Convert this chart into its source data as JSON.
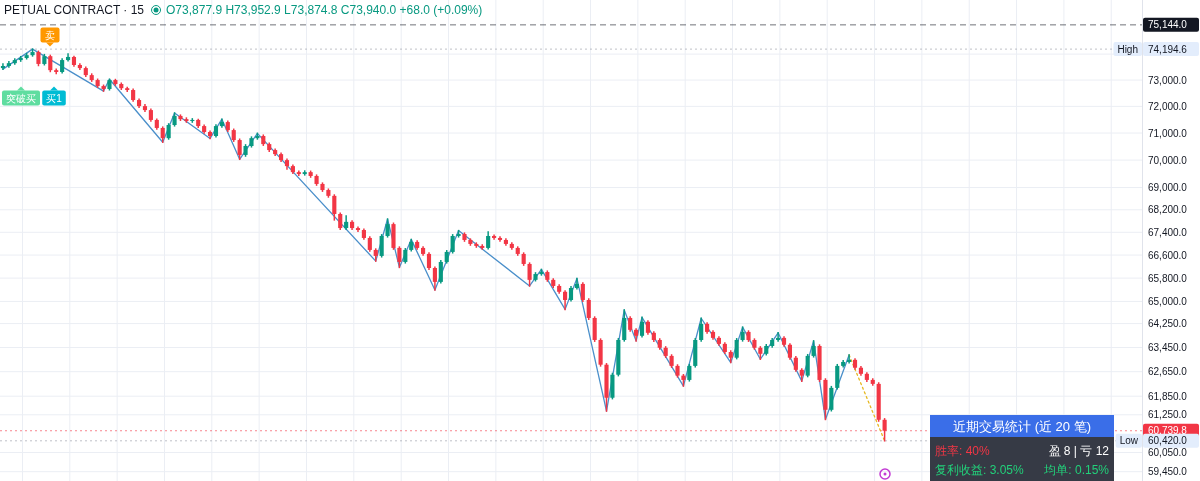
{
  "chart_data": {
    "type": "candlestick",
    "title": "PETUAL CONTRACT · 15",
    "subtitle": "O73,877.9 H73,952.9 L73,874.8 C73,940.0 +68.0 (+0.09%)",
    "categories": [
      null,
      null,
      null,
      null,
      null,
      null,
      null,
      null,
      null,
      null,
      null,
      null,
      null,
      null,
      null,
      null,
      null,
      null,
      null,
      null,
      null,
      null,
      null,
      null,
      null,
      null,
      null,
      null,
      null,
      null,
      null,
      null,
      null,
      null,
      null,
      null,
      null,
      null,
      null,
      null,
      null,
      null,
      null,
      null,
      null,
      null,
      null,
      null,
      null,
      null,
      null,
      null,
      null,
      null,
      null,
      null,
      null,
      null,
      null,
      null,
      null,
      null,
      null,
      null,
      null,
      null,
      null,
      null,
      null,
      null,
      null,
      null,
      null,
      null,
      null,
      null,
      null,
      null,
      null,
      null,
      null,
      null,
      null,
      null,
      null,
      null,
      null,
      null,
      null,
      null,
      null,
      null,
      null,
      null,
      null,
      null,
      null,
      null,
      null,
      null,
      null,
      null,
      null,
      null,
      null,
      null,
      null,
      null,
      null,
      null,
      null,
      null,
      null,
      null,
      null,
      null,
      null,
      null,
      null,
      null,
      null,
      null,
      null,
      null,
      null,
      null,
      null,
      null,
      null,
      null,
      null,
      null,
      null,
      null,
      null,
      null,
      null,
      null,
      null,
      null,
      null,
      null,
      null,
      null,
      null,
      null,
      null,
      null,
      null,
      null,
      null,
      null,
      null,
      null,
      null,
      null,
      null,
      null,
      null,
      null,
      null,
      null,
      null,
      null,
      null,
      null,
      null,
      null,
      null,
      null,
      null,
      null,
      null,
      null,
      null,
      null,
      null,
      null,
      null,
      null,
      null,
      null,
      null,
      null,
      null,
      null,
      null,
      null,
      null,
      null,
      null,
      null,
      null
    ],
    "ohlc": [
      [
        73460,
        73615,
        73420,
        73540
      ],
      [
        73540,
        73700,
        73500,
        73650
      ],
      [
        73650,
        73810,
        73620,
        73770
      ],
      [
        73770,
        73900,
        73730,
        73850
      ],
      [
        73850,
        74020,
        73820,
        73960
      ],
      [
        73960,
        74194.6,
        73930,
        74080
      ],
      [
        74080,
        74110,
        73560,
        73620
      ],
      [
        73620,
        73980,
        73590,
        73920
      ],
      [
        73920,
        73950,
        73330,
        73380
      ],
      [
        73380,
        73420,
        73250,
        73310
      ],
      [
        73310,
        73810,
        73280,
        73770
      ],
      [
        73770,
        74000,
        73740,
        73890
      ],
      [
        73890,
        73910,
        73540,
        73580
      ],
      [
        73580,
        73620,
        73420,
        73460
      ],
      [
        73460,
        73490,
        73150,
        73190
      ],
      [
        73190,
        73230,
        72960,
        73000
      ],
      [
        73000,
        73030,
        72730,
        72770
      ],
      [
        72770,
        72800,
        72580,
        72660
      ],
      [
        72660,
        73030,
        72630,
        73000
      ],
      [
        73000,
        73020,
        72810,
        72850
      ],
      [
        72850,
        72880,
        72650,
        72690
      ],
      [
        72690,
        72720,
        72570,
        72620
      ],
      [
        72620,
        72650,
        72200,
        72240
      ],
      [
        72240,
        72270,
        71970,
        72010
      ],
      [
        72010,
        72060,
        71820,
        71860
      ],
      [
        71860,
        71890,
        71450,
        71490
      ],
      [
        71490,
        71520,
        71150,
        71190
      ],
      [
        71190,
        71220,
        70660,
        70810
      ],
      [
        70810,
        71340,
        70780,
        71300
      ],
      [
        71300,
        71750,
        71270,
        71640
      ],
      [
        71640,
        71670,
        71480,
        71520
      ],
      [
        71520,
        71560,
        71410,
        71450
      ],
      [
        71450,
        71530,
        71410,
        71490
      ],
      [
        71490,
        71510,
        71220,
        71260
      ],
      [
        71260,
        71290,
        71000,
        71040
      ],
      [
        71040,
        71070,
        70800,
        70890
      ],
      [
        70890,
        71300,
        70860,
        71260
      ],
      [
        71260,
        71520,
        71230,
        71410
      ],
      [
        71410,
        71440,
        71070,
        71110
      ],
      [
        71110,
        71140,
        70700,
        70740
      ],
      [
        70740,
        70770,
        70030,
        70190
      ],
      [
        70190,
        70560,
        70150,
        70520
      ],
      [
        70520,
        70850,
        70490,
        70810
      ],
      [
        70810,
        70990,
        70780,
        70890
      ],
      [
        70890,
        70920,
        70550,
        70590
      ],
      [
        70590,
        70620,
        70330,
        70370
      ],
      [
        70370,
        70400,
        70180,
        70220
      ],
      [
        70220,
        70250,
        69960,
        70000
      ],
      [
        70000,
        70030,
        69670,
        69780
      ],
      [
        69780,
        69810,
        69520,
        69560
      ],
      [
        69560,
        69590,
        69450,
        69490
      ],
      [
        69490,
        69600,
        69460,
        69560
      ],
      [
        69560,
        69590,
        69380,
        69420
      ],
      [
        69420,
        69450,
        69090,
        69130
      ],
      [
        69130,
        69160,
        68870,
        68910
      ],
      [
        68910,
        68940,
        68660,
        68700
      ],
      [
        68700,
        68730,
        67840,
        68050
      ],
      [
        68050,
        68080,
        67510,
        67550
      ],
      [
        67550,
        67980,
        67510,
        67770
      ],
      [
        67770,
        67800,
        67510,
        67550
      ],
      [
        67550,
        67580,
        67440,
        67480
      ],
      [
        67480,
        67510,
        67160,
        67200
      ],
      [
        67200,
        67230,
        66740,
        66780
      ],
      [
        66780,
        66810,
        66390,
        66570
      ],
      [
        66570,
        67310,
        66540,
        67270
      ],
      [
        67270,
        67870,
        67240,
        67690
      ],
      [
        67690,
        67720,
        66810,
        66850
      ],
      [
        66850,
        66880,
        66170,
        66360
      ],
      [
        66360,
        66820,
        66330,
        66780
      ],
      [
        66780,
        67150,
        66750,
        67060
      ],
      [
        67060,
        67090,
        66810,
        66850
      ],
      [
        66850,
        66880,
        66600,
        66640
      ],
      [
        66640,
        66670,
        66110,
        66150
      ],
      [
        66150,
        66180,
        65390,
        65670
      ],
      [
        65670,
        66400,
        65640,
        66360
      ],
      [
        66360,
        66750,
        66330,
        66710
      ],
      [
        66710,
        67310,
        66680,
        67270
      ],
      [
        67270,
        67460,
        67240,
        67340
      ],
      [
        67340,
        67370,
        67090,
        67130
      ],
      [
        67130,
        67160,
        66950,
        66990
      ],
      [
        66990,
        67020,
        66880,
        66920
      ],
      [
        66920,
        66950,
        66810,
        66850
      ],
      [
        66850,
        67410,
        66820,
        67270
      ],
      [
        67270,
        67300,
        67160,
        67200
      ],
      [
        67200,
        67230,
        67090,
        67130
      ],
      [
        67130,
        67160,
        66950,
        66990
      ],
      [
        66990,
        67020,
        66810,
        66850
      ],
      [
        66850,
        66880,
        66600,
        66640
      ],
      [
        66640,
        66670,
        66250,
        66290
      ],
      [
        66290,
        66320,
        65530,
        65740
      ],
      [
        65740,
        65980,
        65710,
        65940
      ],
      [
        65940,
        66100,
        65910,
        66010
      ],
      [
        66010,
        66040,
        65700,
        65740
      ],
      [
        65740,
        65770,
        65490,
        65530
      ],
      [
        65530,
        65560,
        65290,
        65330
      ],
      [
        65330,
        65360,
        64730,
        65050
      ],
      [
        65050,
        65500,
        65020,
        65460
      ],
      [
        65460,
        65790,
        65430,
        65600
      ],
      [
        65600,
        65630,
        65010,
        65050
      ],
      [
        65050,
        65080,
        64400,
        64440
      ],
      [
        64440,
        64470,
        63660,
        63700
      ],
      [
        63700,
        63730,
        62840,
        62880
      ],
      [
        62880,
        62910,
        61370,
        61800
      ],
      [
        61800,
        62590,
        61770,
        62550
      ],
      [
        62550,
        63740,
        62520,
        63700
      ],
      [
        63700,
        64710,
        63670,
        64440
      ],
      [
        64440,
        64470,
        64000,
        64040
      ],
      [
        64040,
        64070,
        63670,
        63840
      ],
      [
        63840,
        64460,
        63810,
        64310
      ],
      [
        64310,
        64340,
        63900,
        63940
      ],
      [
        63940,
        63970,
        63660,
        63700
      ],
      [
        63700,
        63730,
        63400,
        63440
      ],
      [
        63440,
        63470,
        63130,
        63170
      ],
      [
        63170,
        63200,
        62800,
        62840
      ],
      [
        62840,
        62870,
        62480,
        62520
      ],
      [
        62520,
        62550,
        62180,
        62380
      ],
      [
        62380,
        62880,
        62350,
        62840
      ],
      [
        62840,
        63740,
        62810,
        63700
      ],
      [
        63700,
        64430,
        63670,
        64240
      ],
      [
        64240,
        64270,
        63930,
        63970
      ],
      [
        63970,
        64000,
        63730,
        63770
      ],
      [
        63770,
        63800,
        63530,
        63570
      ],
      [
        63570,
        63600,
        63260,
        63300
      ],
      [
        63300,
        63330,
        62950,
        63110
      ],
      [
        63110,
        63740,
        63080,
        63700
      ],
      [
        63700,
        64130,
        63670,
        63970
      ],
      [
        63970,
        64000,
        63660,
        63700
      ],
      [
        63700,
        63730,
        63400,
        63440
      ],
      [
        63440,
        63470,
        63060,
        63240
      ],
      [
        63240,
        63540,
        63210,
        63500
      ],
      [
        63500,
        63740,
        63470,
        63700
      ],
      [
        63700,
        63940,
        63670,
        63770
      ],
      [
        63770,
        63800,
        63500,
        63540
      ],
      [
        63540,
        63570,
        63070,
        63110
      ],
      [
        63110,
        63140,
        62670,
        62710
      ],
      [
        62710,
        62740,
        62340,
        62520
      ],
      [
        62520,
        63210,
        62490,
        63170
      ],
      [
        63170,
        63670,
        63140,
        63500
      ],
      [
        63500,
        63530,
        62340,
        62380
      ],
      [
        62380,
        62410,
        61100,
        61410
      ],
      [
        61410,
        62160,
        61380,
        62120
      ],
      [
        62120,
        62880,
        62090,
        62840
      ],
      [
        62840,
        63010,
        62810,
        62970
      ],
      [
        62970,
        63200,
        62940,
        63040
      ],
      [
        63040,
        63070,
        62740,
        62780
      ],
      [
        62780,
        62810,
        62540,
        62580
      ],
      [
        62580,
        62610,
        62340,
        62380
      ],
      [
        62380,
        62410,
        62210,
        62250
      ],
      [
        62250,
        62280,
        61050,
        61090
      ],
      [
        61090,
        61120,
        60420,
        60739.8
      ],
      null,
      null,
      null,
      null,
      null,
      null,
      null,
      null,
      null,
      null,
      null,
      null,
      null,
      null,
      null,
      null,
      null,
      null,
      null,
      null,
      null,
      null,
      null,
      null,
      null,
      null,
      null,
      null,
      null,
      null,
      null,
      null,
      null,
      null,
      null,
      null,
      null,
      null,
      null,
      null,
      null,
      null,
      null
    ],
    "colors": [
      "#089981",
      "#089981",
      "#089981",
      "#089981",
      "#089981",
      "#089981",
      "#f23645",
      "#089981",
      "#f23645",
      "#f23645",
      "#089981",
      "#089981",
      "#f23645",
      "#f23645",
      "#f23645",
      "#f23645",
      "#f23645",
      "#f23645",
      "#089981",
      "#f23645",
      "#f23645",
      "#f23645",
      "#f23645",
      "#f23645",
      "#f23645",
      "#f23645",
      "#f23645",
      "#f23645",
      "#089981",
      "#089981",
      "#f23645",
      "#f23645",
      "#089981",
      "#f23645",
      "#f23645",
      "#f23645",
      "#089981",
      "#089981",
      "#f23645",
      "#f23645",
      "#f23645",
      "#089981",
      "#089981",
      "#089981",
      "#f23645",
      "#f23645",
      "#f23645",
      "#f23645",
      "#f23645",
      "#f23645",
      "#f23645",
      "#089981",
      "#f23645",
      "#f23645",
      "#f23645",
      "#f23645",
      "#f23645",
      "#f23645",
      "#089981",
      "#f23645",
      "#f23645",
      "#f23645",
      "#f23645",
      "#f23645",
      "#089981",
      "#089981",
      "#f23645",
      "#f23645",
      "#089981",
      "#089981",
      "#f23645",
      "#f23645",
      "#f23645",
      "#f23645",
      "#089981",
      "#089981",
      "#089981",
      "#089981",
      "#f23645",
      "#f23645",
      "#f23645",
      "#f23645",
      "#089981",
      "#f23645",
      "#f23645",
      "#f23645",
      "#f23645",
      "#f23645",
      "#f23645",
      "#f23645",
      "#089981",
      "#089981",
      "#f23645",
      "#f23645",
      "#f23645",
      "#f23645",
      "#089981",
      "#089981",
      "#f23645",
      "#f23645",
      "#f23645",
      "#f23645",
      "#f23645",
      "#089981",
      "#089981",
      "#089981",
      "#f23645",
      "#f23645",
      "#089981",
      "#f23645",
      "#f23645",
      "#f23645",
      "#f23645",
      "#f23645",
      "#f23645",
      "#f23645",
      "#089981",
      "#089981",
      "#089981",
      "#f23645",
      "#f23645",
      "#f23645",
      "#f23645",
      "#f23645",
      "#089981",
      "#089981",
      "#f23645",
      "#f23645",
      "#f23645",
      "#089981",
      "#089981",
      "#089981",
      "#f23645",
      "#f23645",
      "#f23645",
      "#f23645",
      "#089981",
      "#089981",
      "#f23645",
      "#f23645",
      "#089981",
      "#089981",
      "#089981",
      "#089981",
      "#f23645",
      "#f23645",
      "#f23645",
      "#f23645",
      "#f23645",
      "#f23645",
      null,
      null,
      null,
      null,
      null,
      null,
      null,
      null,
      null,
      null,
      null,
      null,
      null,
      null,
      null,
      null,
      null,
      null,
      null,
      null,
      null,
      null,
      null,
      null,
      null,
      null,
      null,
      null,
      null,
      null,
      null,
      null,
      null,
      null,
      null,
      null,
      null,
      null,
      null,
      null,
      null,
      null,
      null
    ],
    "series": [
      {
        "type": "line",
        "color": "#4a8fca",
        "values": [
          73420,
          null,
          null,
          null,
          null,
          74194.6,
          null,
          null,
          null,
          null,
          null,
          null,
          null,
          null,
          null,
          null,
          null,
          72580,
          73030,
          null,
          null,
          null,
          null,
          null,
          null,
          null,
          null,
          70660,
          null,
          71750,
          null,
          null,
          null,
          null,
          null,
          70800,
          null,
          71520,
          null,
          null,
          70030,
          null,
          null,
          70990,
          null,
          null,
          null,
          null,
          null,
          null,
          null,
          null,
          null,
          null,
          null,
          null,
          null,
          null,
          null,
          null,
          null,
          null,
          null,
          66390,
          null,
          67870,
          null,
          66170,
          null,
          67150,
          null,
          null,
          null,
          65390,
          null,
          null,
          null,
          67460,
          null,
          null,
          null,
          null,
          null,
          null,
          null,
          null,
          null,
          null,
          null,
          65530,
          null,
          66100,
          null,
          null,
          null,
          64730,
          null,
          65790,
          null,
          null,
          null,
          null,
          61370,
          null,
          null,
          64710,
          null,
          63670,
          64460,
          null,
          null,
          null,
          null,
          null,
          null,
          62180,
          null,
          null,
          64430,
          null,
          null,
          null,
          null,
          62950,
          null,
          64130,
          null,
          null,
          63060,
          null,
          null,
          63940,
          null,
          null,
          null,
          62340,
          null,
          63670,
          null,
          61100,
          null,
          null,
          null,
          63200,
          null,
          null,
          null,
          null,
          null,
          null,
          null,
          null,
          null,
          null,
          null,
          null,
          null,
          null,
          null,
          null,
          null,
          null,
          null,
          null,
          null,
          null,
          null,
          null,
          null,
          null,
          null,
          null,
          null,
          null,
          null,
          null,
          null,
          null,
          null,
          null,
          null,
          null,
          null,
          null,
          null,
          null,
          null,
          null,
          null,
          null,
          null,
          null,
          null
        ]
      },
      {
        "type": "line",
        "color": "#e6b820",
        "line_style": "dotted",
        "values": [
          null,
          null,
          null,
          null,
          null,
          null,
          null,
          null,
          null,
          null,
          null,
          null,
          null,
          null,
          null,
          null,
          null,
          null,
          null,
          null,
          null,
          null,
          null,
          null,
          null,
          null,
          null,
          null,
          null,
          null,
          null,
          null,
          null,
          null,
          null,
          null,
          null,
          null,
          null,
          null,
          null,
          null,
          null,
          null,
          null,
          null,
          null,
          null,
          null,
          null,
          null,
          null,
          null,
          null,
          null,
          null,
          null,
          null,
          null,
          null,
          null,
          null,
          null,
          null,
          null,
          null,
          null,
          null,
          null,
          null,
          null,
          null,
          null,
          null,
          null,
          null,
          null,
          null,
          null,
          null,
          null,
          null,
          null,
          null,
          null,
          null,
          null,
          null,
          null,
          null,
          null,
          null,
          null,
          null,
          null,
          null,
          null,
          null,
          null,
          null,
          null,
          null,
          null,
          null,
          null,
          null,
          null,
          null,
          null,
          null,
          null,
          null,
          null,
          null,
          null,
          null,
          null,
          null,
          null,
          null,
          null,
          null,
          null,
          null,
          null,
          null,
          null,
          null,
          null,
          null,
          null,
          null,
          null,
          null,
          null,
          null,
          null,
          null,
          null,
          null,
          null,
          null,
          null,
          63200,
          null,
          null,
          null,
          null,
          null,
          60420,
          null,
          null,
          null,
          null,
          null,
          null,
          null,
          null,
          null,
          null,
          null,
          null,
          null,
          null,
          null,
          null,
          null,
          null,
          null,
          null,
          null,
          null,
          null,
          null,
          null,
          null,
          null,
          null,
          null,
          null,
          null,
          null,
          null,
          null,
          null,
          null,
          null,
          null,
          null,
          null,
          null,
          null,
          null
        ]
      }
    ],
    "log": true,
    "ylim": [
      59160,
      76130
    ],
    "yticks": [
      {
        "value": 74000,
        "label": null
      },
      {
        "value": 73000,
        "label": "73,000.0"
      },
      {
        "value": 72000,
        "label": "72,000.0"
      },
      {
        "value": 71000,
        "label": "71,000.0"
      },
      {
        "value": 70000,
        "label": "70,000.0"
      },
      {
        "value": 69000,
        "label": "69,000.0"
      },
      {
        "value": 68200,
        "label": "68,200.0"
      },
      {
        "value": 67400,
        "label": "67,400.0"
      },
      {
        "value": 66600,
        "label": "66,600.0"
      },
      {
        "value": 65800,
        "label": "65,800.0"
      },
      {
        "value": 65000,
        "label": "65,000.0"
      },
      {
        "value": 64250,
        "label": "64,250.0"
      },
      {
        "value": 63450,
        "label": "63,450.0"
      },
      {
        "value": 62650,
        "label": "62,650.0"
      },
      {
        "value": 61850,
        "label": "61,850.0"
      },
      {
        "value": 61250,
        "label": "61,250.0"
      },
      {
        "value": 60050,
        "label": "60,050.0"
      },
      {
        "value": 59450,
        "label": "59,450.0"
      }
    ],
    "ref_lines": [
      {
        "axis": "y",
        "value": 75144,
        "label": "75,144.0",
        "color": "#131722",
        "line_style": "dashed"
      },
      {
        "axis": "y",
        "value": 74194.6,
        "label": "High 74,194.6",
        "color": "#9598a1",
        "line_style": "dotted"
      },
      {
        "axis": "y",
        "value": 60739.8,
        "label": "60,739.8",
        "color": "#f23645",
        "line_style": "dotted"
      },
      {
        "axis": "y",
        "value": 60420,
        "label": "Low 60,420.0",
        "color": "#9598a1",
        "line_style": "dotted"
      }
    ],
    "grid": true,
    "tick_labels": "y",
    "annotations": [
      "卖",
      "买1",
      "突破买",
      "近期交易统计 (近 20 笔)",
      "胜率: 40%",
      "盈 8 | 亏 12",
      "复利收益: 3.05%",
      "均单: 0.15%"
    ]
  }
}
